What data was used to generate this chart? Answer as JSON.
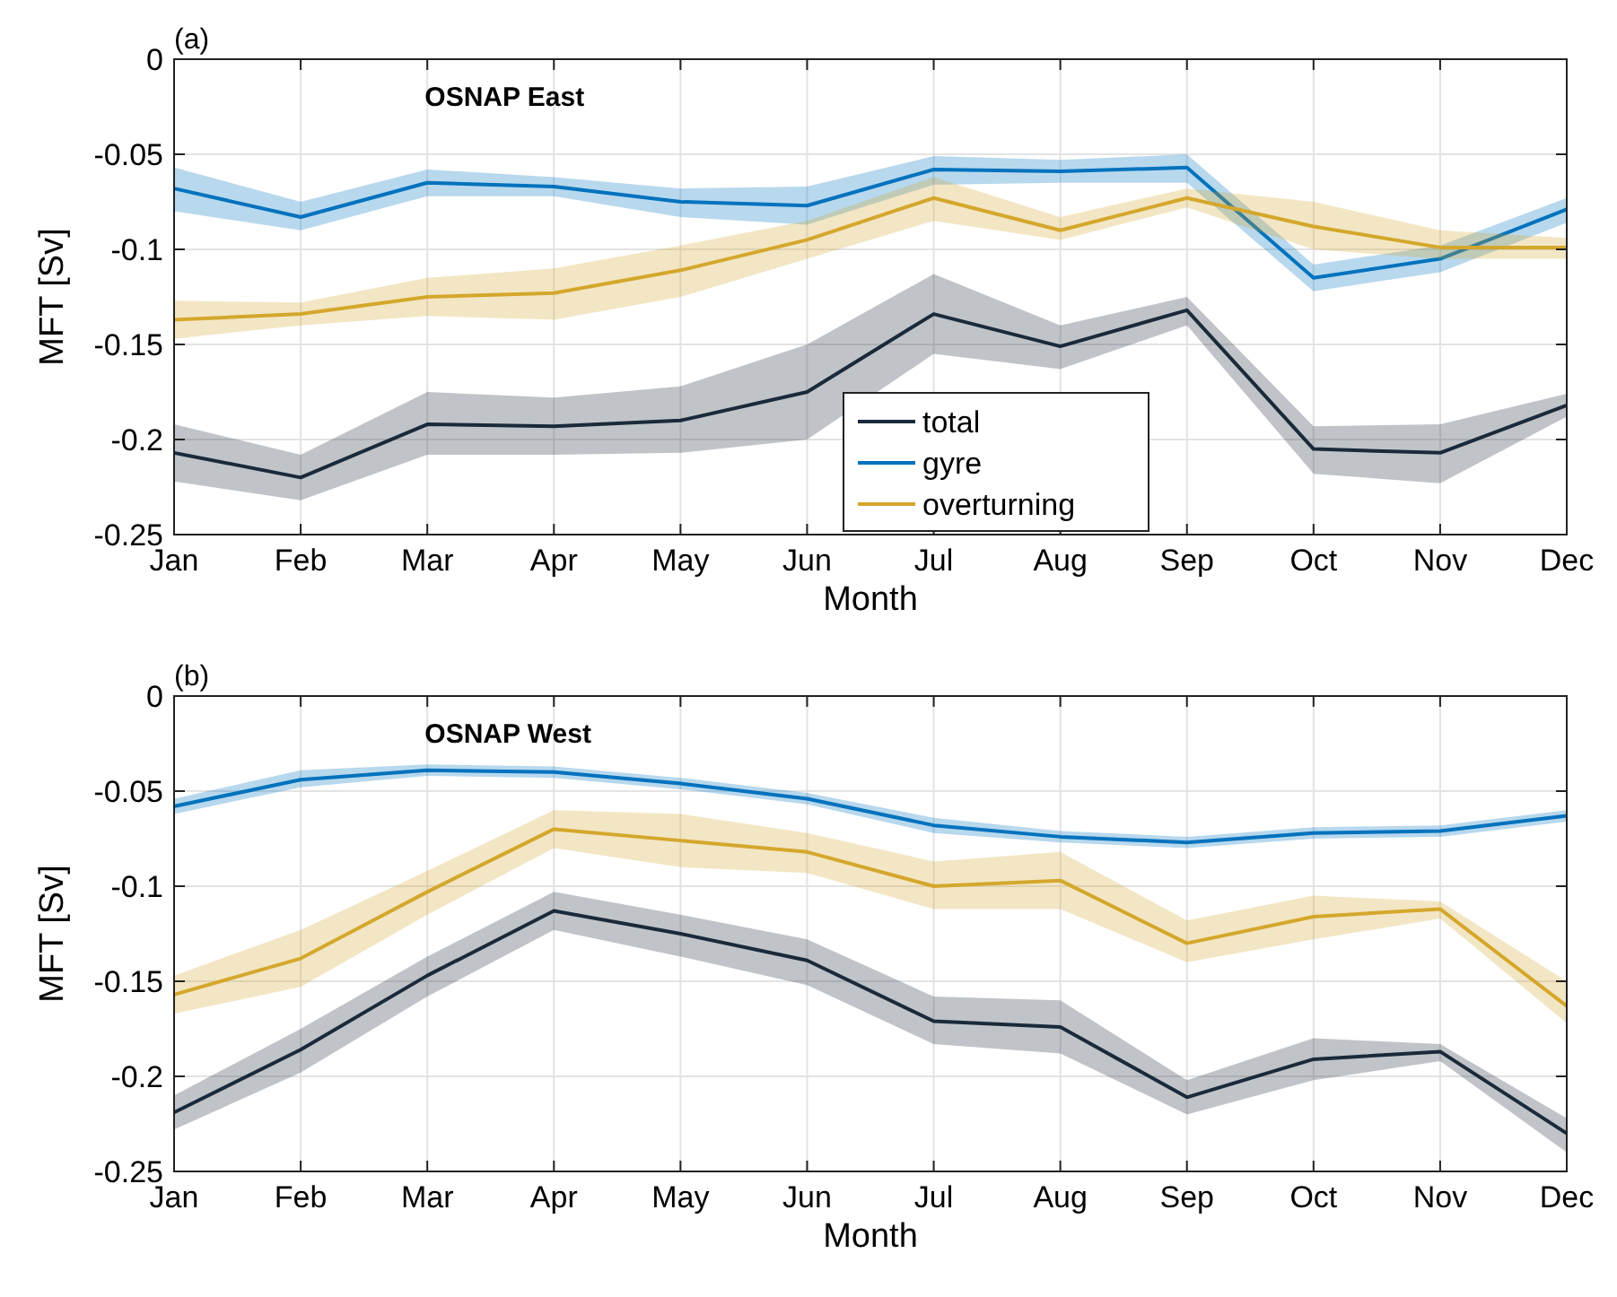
{
  "chart_data": [
    {
      "type": "line",
      "annotations": [
        "(a)",
        "OSNAP East"
      ],
      "xlabel": "Month",
      "ylabel": "MFT [Sv]",
      "categories": [
        "Jan",
        "Feb",
        "Mar",
        "Apr",
        "May",
        "Jun",
        "Jul",
        "Aug",
        "Sep",
        "Oct",
        "Nov",
        "Dec"
      ],
      "ylim": [
        -0.25,
        0
      ],
      "yticks": [
        -0.25,
        -0.2,
        -0.15,
        -0.1,
        -0.05,
        0
      ],
      "grid": true,
      "legend": "bottom",
      "line_style": "solid",
      "marker": "none",
      "series": [
        {
          "name": "total",
          "color": "#1b2a3a",
          "values": [
            -0.207,
            -0.22,
            -0.192,
            -0.193,
            -0.19,
            -0.175,
            -0.134,
            -0.151,
            -0.132,
            -0.205,
            -0.207,
            -0.182
          ],
          "lower": [
            -0.222,
            -0.232,
            -0.208,
            -0.208,
            -0.207,
            -0.2,
            -0.155,
            -0.163,
            -0.14,
            -0.218,
            -0.223,
            -0.188
          ],
          "upper": [
            -0.192,
            -0.208,
            -0.175,
            -0.178,
            -0.172,
            -0.15,
            -0.113,
            -0.14,
            -0.125,
            -0.193,
            -0.192,
            -0.176
          ]
        },
        {
          "name": "gyre",
          "color": "#0072bd",
          "values": [
            -0.068,
            -0.083,
            -0.065,
            -0.067,
            -0.075,
            -0.077,
            -0.058,
            -0.059,
            -0.057,
            -0.115,
            -0.105,
            -0.079
          ],
          "lower": [
            -0.08,
            -0.09,
            -0.072,
            -0.072,
            -0.083,
            -0.087,
            -0.066,
            -0.065,
            -0.065,
            -0.122,
            -0.112,
            -0.086
          ],
          "upper": [
            -0.057,
            -0.075,
            -0.058,
            -0.062,
            -0.068,
            -0.067,
            -0.051,
            -0.053,
            -0.05,
            -0.108,
            -0.098,
            -0.073
          ]
        },
        {
          "name": "overturning",
          "color": "#d4a72c",
          "values": [
            -0.137,
            -0.134,
            -0.125,
            -0.123,
            -0.111,
            -0.095,
            -0.073,
            -0.09,
            -0.073,
            -0.088,
            -0.099,
            -0.099
          ],
          "lower": [
            -0.147,
            -0.14,
            -0.135,
            -0.137,
            -0.125,
            -0.105,
            -0.085,
            -0.095,
            -0.078,
            -0.1,
            -0.105,
            -0.105
          ],
          "upper": [
            -0.127,
            -0.128,
            -0.115,
            -0.11,
            -0.098,
            -0.085,
            -0.062,
            -0.083,
            -0.068,
            -0.075,
            -0.09,
            -0.094
          ]
        }
      ]
    },
    {
      "type": "line",
      "annotations": [
        "(b)",
        "OSNAP West"
      ],
      "xlabel": "Month",
      "ylabel": "MFT [Sv]",
      "categories": [
        "Jan",
        "Feb",
        "Mar",
        "Apr",
        "May",
        "Jun",
        "Jul",
        "Aug",
        "Sep",
        "Oct",
        "Nov",
        "Dec"
      ],
      "ylim": [
        -0.25,
        0
      ],
      "yticks": [
        -0.25,
        -0.2,
        -0.15,
        -0.1,
        -0.05,
        0
      ],
      "grid": true,
      "line_style": "solid",
      "marker": "none",
      "series": [
        {
          "color": "#1b2a3a",
          "values": [
            -0.219,
            -0.186,
            -0.147,
            -0.113,
            -0.125,
            -0.139,
            -0.171,
            -0.174,
            -0.211,
            -0.191,
            -0.187,
            -0.23
          ],
          "lower": [
            -0.228,
            -0.198,
            -0.158,
            -0.123,
            -0.137,
            -0.152,
            -0.183,
            -0.188,
            -0.22,
            -0.202,
            -0.192,
            -0.24
          ],
          "upper": [
            -0.21,
            -0.175,
            -0.137,
            -0.103,
            -0.115,
            -0.128,
            -0.158,
            -0.16,
            -0.202,
            -0.18,
            -0.183,
            -0.222
          ]
        },
        {
          "color": "#0072bd",
          "values": [
            -0.058,
            -0.044,
            -0.039,
            -0.04,
            -0.046,
            -0.054,
            -0.068,
            -0.074,
            -0.077,
            -0.072,
            -0.071,
            -0.063
          ],
          "lower": [
            -0.062,
            -0.048,
            -0.042,
            -0.043,
            -0.049,
            -0.057,
            -0.072,
            -0.077,
            -0.08,
            -0.075,
            -0.074,
            -0.066
          ],
          "upper": [
            -0.054,
            -0.039,
            -0.036,
            -0.037,
            -0.043,
            -0.051,
            -0.064,
            -0.071,
            -0.074,
            -0.069,
            -0.068,
            -0.06
          ]
        },
        {
          "color": "#d4a72c",
          "values": [
            -0.157,
            -0.138,
            -0.103,
            -0.07,
            -0.076,
            -0.082,
            -0.1,
            -0.097,
            -0.13,
            -0.116,
            -0.112,
            -0.163
          ],
          "lower": [
            -0.167,
            -0.153,
            -0.115,
            -0.08,
            -0.09,
            -0.093,
            -0.112,
            -0.112,
            -0.14,
            -0.128,
            -0.117,
            -0.172
          ],
          "upper": [
            -0.147,
            -0.123,
            -0.092,
            -0.06,
            -0.062,
            -0.072,
            -0.087,
            -0.082,
            -0.118,
            -0.105,
            -0.108,
            -0.15
          ]
        }
      ]
    }
  ]
}
